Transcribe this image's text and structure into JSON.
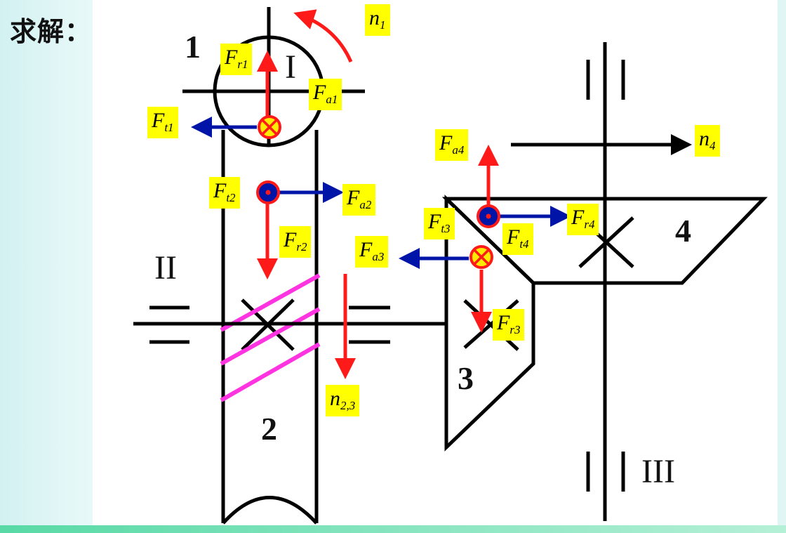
{
  "heading": "求解：",
  "gear_numbers": {
    "g1": "1",
    "g2": "2",
    "g3": "3",
    "g4": "4"
  },
  "shaft_labels": {
    "s1": "I",
    "s2": "II",
    "s3": "III"
  },
  "force_labels": {
    "Fr1": {
      "main": "F",
      "sub": "r1"
    },
    "Fa1": {
      "main": "F",
      "sub": "a1"
    },
    "Ft1": {
      "main": "F",
      "sub": "t1"
    },
    "Ft2": {
      "main": "F",
      "sub": "t2"
    },
    "Fa2": {
      "main": "F",
      "sub": "a2"
    },
    "Fr2": {
      "main": "F",
      "sub": "r2"
    },
    "Fa4": {
      "main": "F",
      "sub": "a4"
    },
    "Fr4": {
      "main": "F",
      "sub": "r4"
    },
    "Ft4": {
      "main": "F",
      "sub": "t4"
    },
    "Ft3": {
      "main": "F",
      "sub": "t3"
    },
    "Fa3": {
      "main": "F",
      "sub": "a3"
    },
    "Fr3": {
      "main": "F",
      "sub": "r3"
    }
  },
  "speed_labels": {
    "n1": {
      "main": "n",
      "sub": "1"
    },
    "n4": {
      "main": "n",
      "sub": "4"
    },
    "n23": {
      "main": "n",
      "sub": "2,3"
    }
  },
  "colors": {
    "structure": "#000000",
    "radial_axial_arrow": "#ff1a1a",
    "tangential_arrow": "#0014a8",
    "helix_lines": "#ff33e0",
    "label_background": "#ffff00",
    "rotation_arrow": "#ff1a1a"
  }
}
